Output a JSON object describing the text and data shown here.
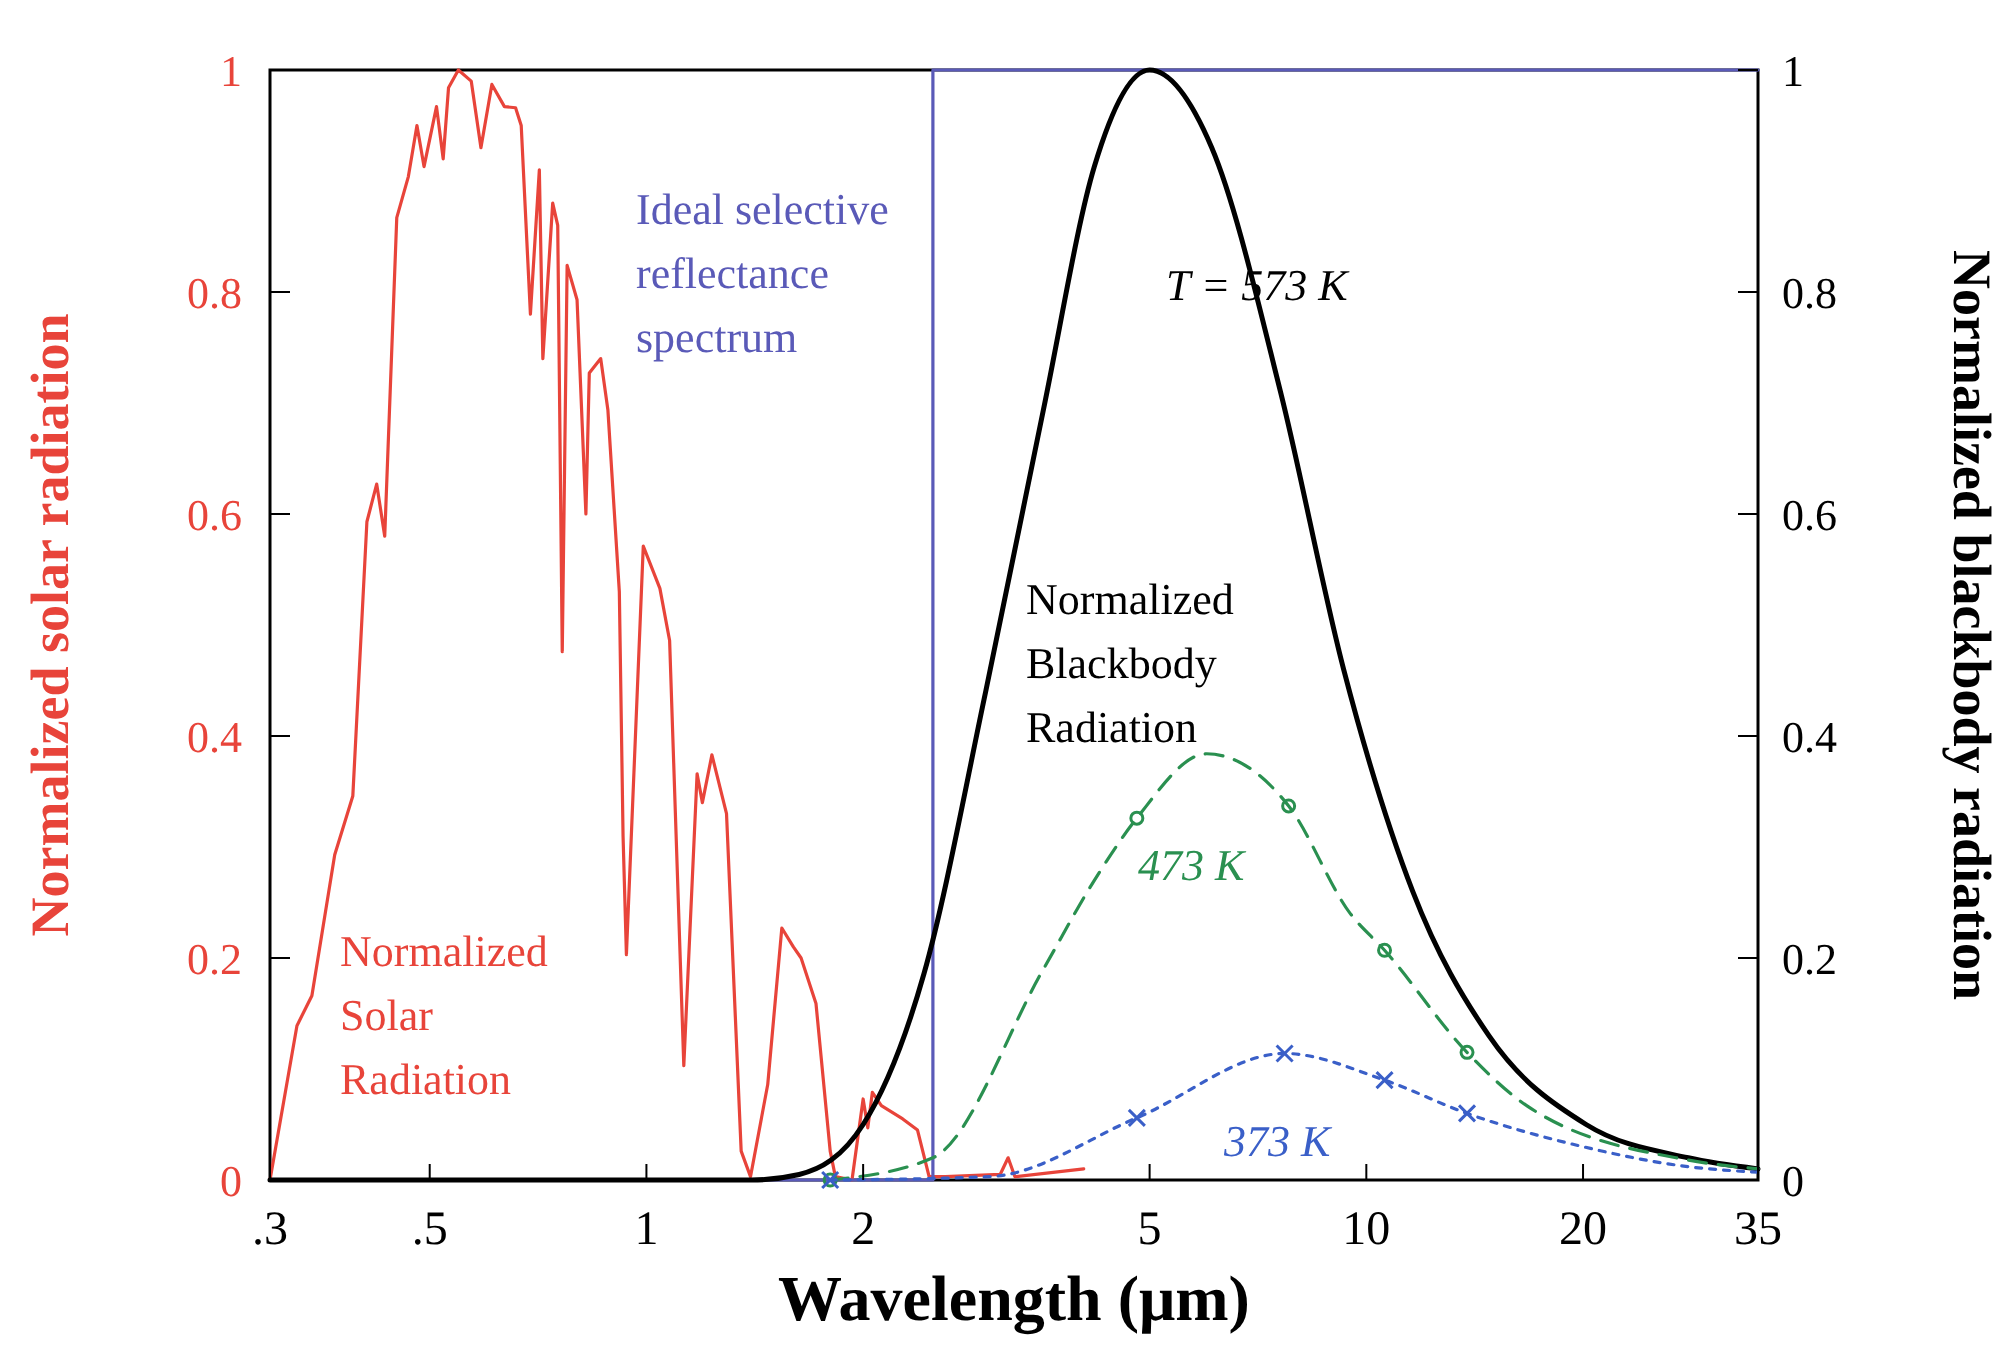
{
  "chart_data": {
    "type": "line",
    "xlabel": "Wavelength (μm)",
    "ylabel": "Normalized solar radiation",
    "y2label": "Normalized blackbody radiation",
    "log": "x",
    "xlim": [
      0.3,
      35
    ],
    "xticks": [
      {
        "value": 0.3,
        "label": ".3"
      },
      {
        "value": 0.5,
        "label": ".5"
      },
      1,
      2,
      5,
      10,
      20,
      35
    ],
    "ylim": [
      0,
      1
    ],
    "yticks": [
      0,
      0.2,
      0.4,
      0.6,
      0.8,
      1
    ],
    "y2lim": [
      0,
      1
    ],
    "y2ticks": [
      0,
      0.2,
      0.4,
      0.6,
      0.8,
      1
    ],
    "series": [
      {
        "name": "Normalized Solar Radiation",
        "color": "#e8443a",
        "x": [
          0.3,
          0.327,
          0.343,
          0.369,
          0.391,
          0.409,
          0.422,
          0.433,
          0.45,
          0.467,
          0.48,
          0.491,
          0.511,
          0.522,
          0.531,
          0.548,
          0.571,
          0.589,
          0.61,
          0.635,
          0.658,
          0.67,
          0.69,
          0.71,
          0.718,
          0.741,
          0.753,
          0.764,
          0.776,
          0.801,
          0.824,
          0.833,
          0.864,
          0.884,
          0.917,
          0.928,
          0.938,
          0.99,
          1.044,
          1.077,
          1.127,
          1.176,
          1.196,
          1.233,
          1.292,
          1.354,
          1.395,
          1.474,
          1.542,
          1.6,
          1.64,
          1.72,
          1.8,
          1.83,
          1.93,
          2.0,
          2.03,
          2.06,
          2.12,
          2.27,
          2.38,
          2.47,
          2.6,
          3.1,
          3.18,
          3.25,
          4.05
        ],
        "values": [
          0,
          0.139,
          0.166,
          0.293,
          0.346,
          0.593,
          0.627,
          0.58,
          0.867,
          0.904,
          0.95,
          0.913,
          0.967,
          0.92,
          0.984,
          1,
          0.99,
          0.93,
          0.987,
          0.967,
          0.966,
          0.95,
          0.78,
          0.91,
          0.74,
          0.88,
          0.86,
          0.476,
          0.824,
          0.793,
          0.6,
          0.727,
          0.74,
          0.694,
          0.53,
          0.31,
          0.203,
          0.571,
          0.533,
          0.486,
          0.103,
          0.366,
          0.34,
          0.383,
          0.33,
          0.026,
          0.003,
          0.086,
          0.227,
          0.21,
          0.2,
          0.159,
          0.026,
          0.003,
          0,
          0.073,
          0.047,
          0.079,
          0.067,
          0.055,
          0.045,
          0.003,
          0.003,
          0.005,
          0.02,
          0.003,
          0.01
        ]
      },
      {
        "name": "Ideal selective reflectance spectrum",
        "color": "#5a5ab8",
        "x": [
          0.3,
          2.5,
          2.5,
          35
        ],
        "values": [
          0,
          0,
          1,
          1
        ]
      },
      {
        "name": "Normalized Blackbody Radiation",
        "color": "#000000",
        "x": [
          0.3,
          1.4,
          1.63,
          2,
          2.43,
          2.96,
          3.56,
          4.19,
          5,
          6.1,
          7.6,
          9.3,
          11.6,
          14.8,
          20.2,
          28,
          35
        ],
        "values": [
          0,
          0,
          0.005,
          0.05,
          0.186,
          0.44,
          0.694,
          0.913,
          1,
          0.93,
          0.71,
          0.46,
          0.26,
          0.13,
          0.05,
          0.02,
          0.01
        ]
      },
      {
        "name": "473 K",
        "color": "#2a9050",
        "line_style": "dashed",
        "x": [
          1.8,
          2.5,
          3.56,
          4.19,
          4.8,
          6,
          7.8,
          9.5,
          10.6,
          13.8,
          16.7,
          28,
          35
        ],
        "values": [
          0,
          0.02,
          0.19,
          0.27,
          0.326,
          0.384,
          0.337,
          0.24,
          0.207,
          0.115,
          0.067,
          0.018,
          0.01
        ]
      },
      {
        "type": "scatter",
        "color": "#2a9050",
        "marker": "circle",
        "x": [
          1.8,
          4.8,
          7.8,
          10.6,
          13.8
        ],
        "values": [
          0,
          0.326,
          0.337,
          0.207,
          0.115
        ]
      },
      {
        "name": "373 K",
        "color": "#3a5fc8",
        "line_style": "dotted",
        "x": [
          1.8,
          3,
          4.8,
          7.7,
          10.6,
          13.8,
          20,
          28,
          35
        ],
        "values": [
          0,
          0.003,
          0.056,
          0.114,
          0.09,
          0.06,
          0.03,
          0.012,
          0.007
        ]
      },
      {
        "type": "scatter",
        "color": "#3a5fc8",
        "marker": "cross",
        "x": [
          1.8,
          4.8,
          7.7,
          10.6,
          13.8
        ],
        "values": [
          0,
          0.056,
          0.114,
          0.09,
          0.06
        ]
      }
    ],
    "annotations": [
      "T = 573 K"
    ]
  }
}
